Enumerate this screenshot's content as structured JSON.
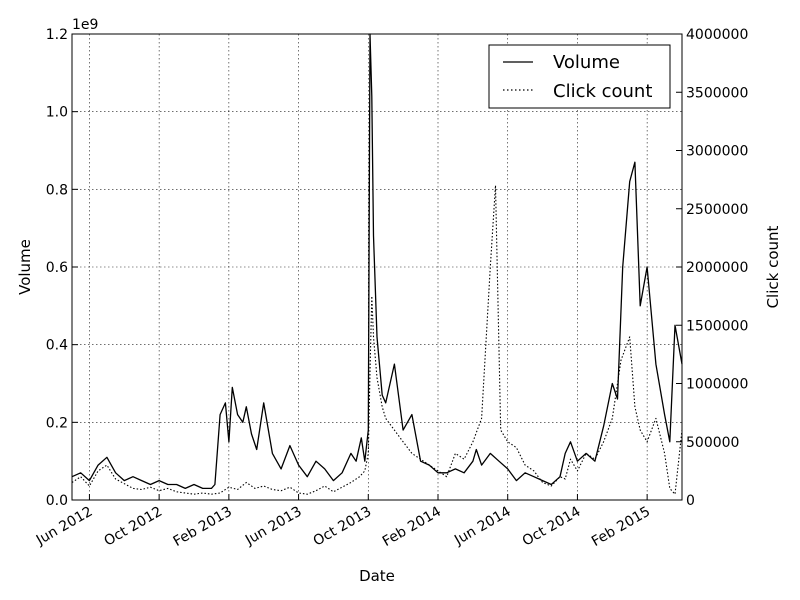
{
  "chart_data": {
    "type": "line",
    "title": "",
    "xlabel": "Date",
    "ylabel_left": "Volume",
    "ylabel_right": "Click count",
    "left_exponent_label": "1e9",
    "x_range_months": [
      0,
      35
    ],
    "x_ticks": [
      {
        "label": "Jun 2012",
        "month": 1
      },
      {
        "label": "Oct 2012",
        "month": 5
      },
      {
        "label": "Feb 2013",
        "month": 9
      },
      {
        "label": "Jun 2013",
        "month": 13
      },
      {
        "label": "Oct 2013",
        "month": 17
      },
      {
        "label": "Feb 2014",
        "month": 21
      },
      {
        "label": "Jun 2014",
        "month": 25
      },
      {
        "label": "Oct 2014",
        "month": 29
      },
      {
        "label": "Feb 2015",
        "month": 33
      }
    ],
    "ylim_left": [
      0,
      1.2
    ],
    "y_ticks_left": [
      "0.0",
      "0.2",
      "0.4",
      "0.6",
      "0.8",
      "1.0",
      "1.2"
    ],
    "ylim_right": [
      0,
      4000000
    ],
    "y_ticks_right": [
      "0",
      "500000",
      "1000000",
      "1500000",
      "2000000",
      "2500000",
      "3000000",
      "3500000",
      "4000000"
    ],
    "grid": true,
    "legend_position": "top-right",
    "series": [
      {
        "name": "Volume",
        "axis": "left",
        "style": "solid",
        "x": [
          0,
          0.5,
          1,
          1.5,
          2,
          2.5,
          3,
          3.5,
          4,
          4.5,
          5,
          5.5,
          6,
          6.5,
          7,
          7.5,
          8,
          8.2,
          8.5,
          8.8,
          9,
          9.2,
          9.5,
          9.8,
          10,
          10.3,
          10.6,
          11,
          11.5,
          12,
          12.5,
          13,
          13.5,
          14,
          14.5,
          15,
          15.5,
          16,
          16.3,
          16.6,
          16.8,
          17,
          17.1,
          17.2,
          17.3,
          17.5,
          17.8,
          18,
          18.5,
          19,
          19.5,
          20,
          20.5,
          21,
          21.5,
          22,
          22.5,
          23,
          23.2,
          23.5,
          24,
          24.5,
          25,
          25.5,
          26,
          26.5,
          27,
          27.5,
          28,
          28.3,
          28.6,
          29,
          29.5,
          30,
          30.5,
          31,
          31.3,
          31.6,
          32,
          32.3,
          32.6,
          33,
          33.5,
          34,
          34.3,
          34.6,
          35
        ],
        "values": [
          0.06,
          0.07,
          0.05,
          0.09,
          0.11,
          0.07,
          0.05,
          0.06,
          0.05,
          0.04,
          0.05,
          0.04,
          0.04,
          0.03,
          0.04,
          0.03,
          0.03,
          0.04,
          0.22,
          0.25,
          0.15,
          0.29,
          0.22,
          0.2,
          0.24,
          0.17,
          0.13,
          0.25,
          0.12,
          0.08,
          0.14,
          0.09,
          0.06,
          0.1,
          0.08,
          0.05,
          0.07,
          0.12,
          0.1,
          0.16,
          0.1,
          0.18,
          1.2,
          1.04,
          0.68,
          0.42,
          0.27,
          0.25,
          0.35,
          0.18,
          0.22,
          0.1,
          0.09,
          0.07,
          0.07,
          0.08,
          0.07,
          0.1,
          0.13,
          0.09,
          0.12,
          0.1,
          0.08,
          0.05,
          0.07,
          0.06,
          0.05,
          0.04,
          0.06,
          0.12,
          0.15,
          0.1,
          0.12,
          0.1,
          0.19,
          0.3,
          0.26,
          0.6,
          0.82,
          0.87,
          0.5,
          0.6,
          0.35,
          0.22,
          0.15,
          0.45,
          0.35
        ]
      },
      {
        "name": "Click count",
        "axis": "right",
        "style": "dotted",
        "x": [
          0,
          0.5,
          1,
          1.5,
          2,
          2.5,
          3,
          3.5,
          4,
          4.5,
          5,
          5.5,
          6,
          6.5,
          7,
          7.5,
          8,
          8.5,
          9,
          9.5,
          10,
          10.5,
          11,
          11.5,
          12,
          12.5,
          13,
          13.5,
          14,
          14.5,
          15,
          15.5,
          16,
          16.5,
          16.8,
          17,
          17.1,
          17.2,
          17.3,
          17.5,
          17.8,
          18,
          18.5,
          19,
          19.5,
          20,
          20.5,
          21,
          21.5,
          22,
          22.5,
          23,
          23.5,
          24,
          24.3,
          24.6,
          25,
          25.5,
          26,
          26.5,
          27,
          27.5,
          28,
          28.3,
          28.6,
          29,
          29.5,
          30,
          30.5,
          31,
          31.5,
          32,
          32.3,
          32.6,
          33,
          33.5,
          34,
          34.3,
          34.6,
          35
        ],
        "values": [
          150000,
          200000,
          120000,
          250000,
          300000,
          180000,
          140000,
          100000,
          90000,
          110000,
          80000,
          100000,
          70000,
          60000,
          50000,
          60000,
          50000,
          60000,
          110000,
          90000,
          150000,
          100000,
          120000,
          90000,
          80000,
          110000,
          60000,
          50000,
          80000,
          120000,
          70000,
          110000,
          150000,
          200000,
          250000,
          400000,
          1100000,
          1750000,
          1400000,
          1050000,
          800000,
          700000,
          600000,
          500000,
          400000,
          350000,
          300000,
          250000,
          200000,
          400000,
          350000,
          500000,
          700000,
          2000000,
          2700000,
          600000,
          500000,
          450000,
          300000,
          250000,
          150000,
          120000,
          200000,
          180000,
          350000,
          250000,
          400000,
          350000,
          500000,
          700000,
          1200000,
          1400000,
          800000,
          600000,
          500000,
          700000,
          400000,
          100000,
          50000,
          600000
        ]
      }
    ]
  }
}
